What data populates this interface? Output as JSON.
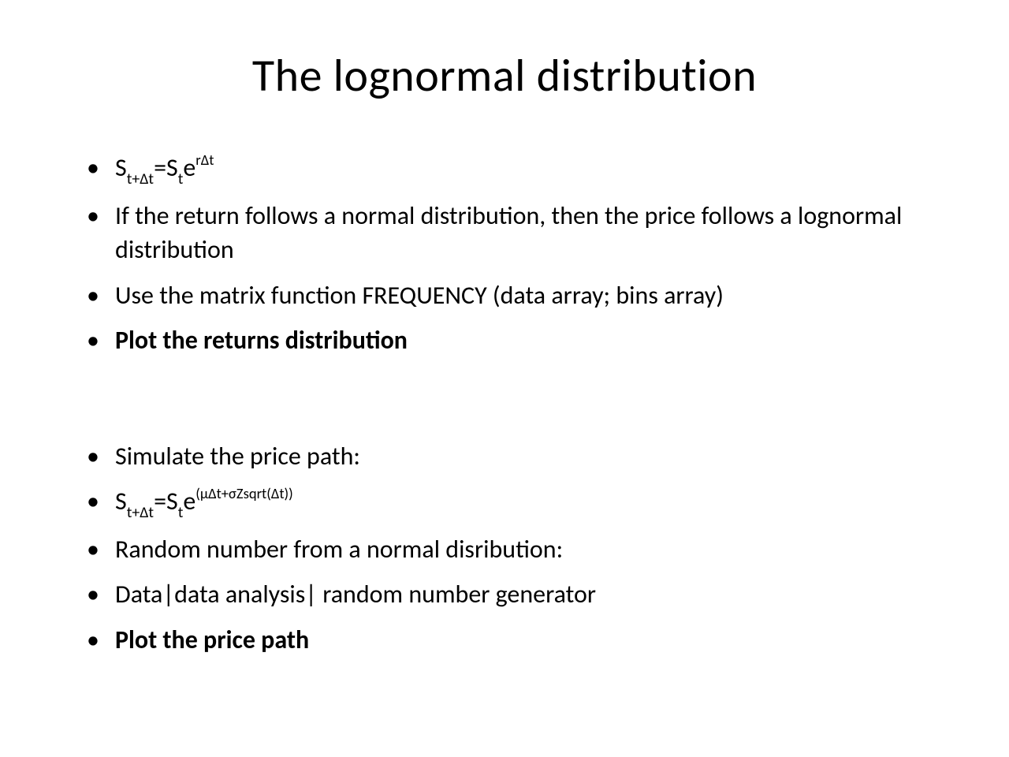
{
  "slide": {
    "title": "The lognormal distribution",
    "title_fontsize": 58,
    "body_fontsize": 32,
    "text_color": "#000000",
    "background_color": "#ffffff",
    "bullets_group1": [
      {
        "type": "formula",
        "parts": {
          "s1": "S",
          "s1_sub": "t+Δt",
          "eq": "=S",
          "s2_sub": "t",
          "e": "e",
          "exp": "rΔt"
        },
        "bold": false
      },
      {
        "type": "text",
        "text": "If the return follows a normal distribution, then the price follows a lognormal distribution",
        "bold": false
      },
      {
        "type": "text",
        "text": "Use the matrix function FREQUENCY (data array;  bins array)",
        "bold": false
      },
      {
        "type": "text",
        "text": "Plot the returns distribution",
        "bold": true
      }
    ],
    "bullets_group2": [
      {
        "type": "text",
        "text": "Simulate the price path:",
        "bold": false
      },
      {
        "type": "formula2",
        "parts": {
          "s1": "S",
          "s1_sub": "t+Δt",
          "eq": "=S",
          "s2_sub": "t",
          "e": "e",
          "exp": "(μΔt+σZsqrt(Δt))"
        },
        "bold": false
      },
      {
        "type": "text",
        "text": "Random number from a normal disribution:",
        "bold": false
      },
      {
        "type": "text",
        "text": "Data|data analysis| random number generator",
        "bold": false
      },
      {
        "type": "text",
        "text": "Plot the price path",
        "bold": true
      }
    ]
  }
}
